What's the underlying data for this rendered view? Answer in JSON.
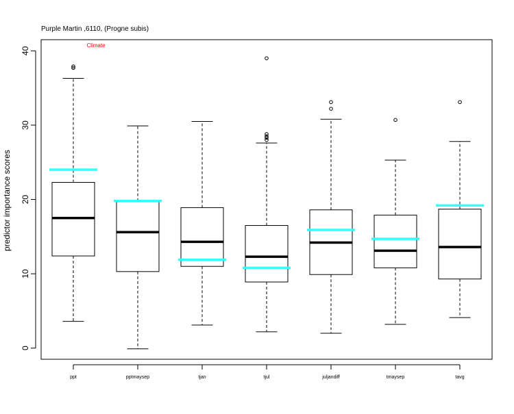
{
  "chart_data": {
    "type": "boxplot",
    "title": "Purple Martin ,6110, (Progne subis)",
    "annotation": "Climate",
    "annotation_color": "#ff0000",
    "xlabel": "",
    "ylabel": "predictor importance scores",
    "ylim": [
      -1.5,
      41.5
    ],
    "yticks": [
      "0",
      "10",
      "20",
      "30",
      "40"
    ],
    "ytick_values": [
      0,
      10,
      20,
      30,
      40
    ],
    "marker_color": "#33ffff",
    "grid": false,
    "categories": [
      "ppt",
      "pptmaysep",
      "tjan",
      "tjul",
      "juljandiff",
      "tmaysep",
      "tavg"
    ],
    "boxes": [
      {
        "name": "ppt",
        "whisker_low": 3.6,
        "q1": 12.4,
        "median": 17.5,
        "q3": 22.3,
        "whisker_high": 36.3,
        "outliers": [
          37.7,
          37.9
        ],
        "marker": 24.0
      },
      {
        "name": "pptmaysep",
        "whisker_low": -0.1,
        "q1": 10.3,
        "median": 15.6,
        "q3": 19.8,
        "whisker_high": 29.9,
        "outliers": [],
        "marker": 19.8
      },
      {
        "name": "tjan",
        "whisker_low": 3.1,
        "q1": 11.0,
        "median": 14.3,
        "q3": 18.9,
        "whisker_high": 30.5,
        "outliers": [],
        "marker": 11.9
      },
      {
        "name": "tjul",
        "whisker_low": 2.2,
        "q1": 8.9,
        "median": 12.3,
        "q3": 16.5,
        "whisker_high": 27.6,
        "outliers": [
          28.0,
          28.3,
          28.5,
          28.8,
          39.0
        ],
        "marker": 10.8
      },
      {
        "name": "juljandiff",
        "whisker_low": 2.0,
        "q1": 9.9,
        "median": 14.2,
        "q3": 18.6,
        "whisker_high": 30.8,
        "outliers": [
          32.2,
          33.1
        ],
        "marker": 15.9
      },
      {
        "name": "tmaysep",
        "whisker_low": 3.2,
        "q1": 10.8,
        "median": 13.1,
        "q3": 17.9,
        "whisker_high": 25.3,
        "outliers": [
          30.7
        ],
        "marker": 14.7
      },
      {
        "name": "tavg",
        "whisker_low": 4.1,
        "q1": 9.3,
        "median": 13.6,
        "q3": 18.7,
        "whisker_high": 27.8,
        "outliers": [
          33.1
        ],
        "marker": 19.2
      }
    ]
  }
}
